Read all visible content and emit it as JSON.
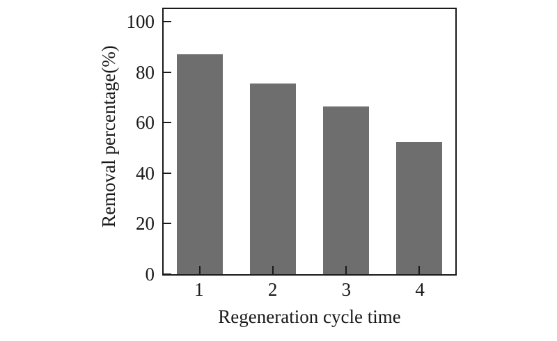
{
  "figure": {
    "background": "#ffffff"
  },
  "chart_data": {
    "type": "bar",
    "categories": [
      "1",
      "2",
      "3",
      "4"
    ],
    "values": [
      87,
      75.5,
      66.5,
      52.5
    ],
    "title": "",
    "xlabel": "Regeneration cycle time",
    "ylabel": "Removal percentage(%)",
    "ylim": [
      0,
      105
    ],
    "yticks": [
      0,
      20,
      40,
      60,
      80,
      100
    ],
    "grid": false,
    "legend": null,
    "bar_color": "#6e6e6e",
    "axis_color": "#1a1a1a",
    "text_color": "#1a1a1a"
  }
}
